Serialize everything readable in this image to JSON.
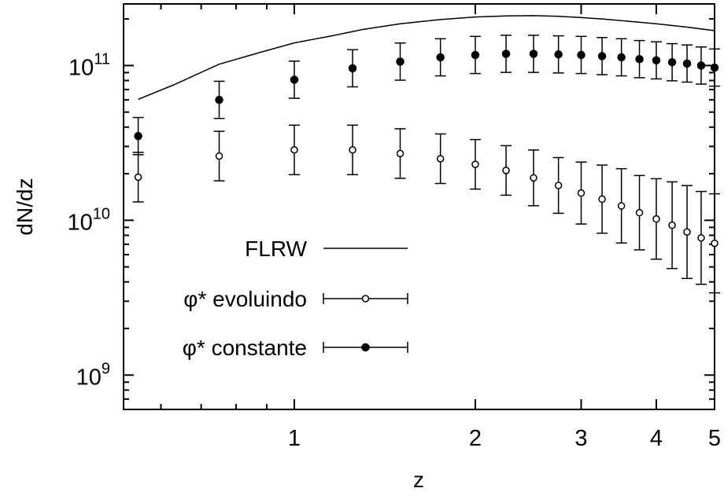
{
  "chart_data": {
    "type": "scatter",
    "xscale": "log",
    "yscale": "log",
    "xlim": [
      0.52,
      5.0
    ],
    "ylim": [
      600000000,
      250000000000
    ],
    "xlabel": "z",
    "ylabel": "dN/dz",
    "x_ticks": [
      {
        "value": 1,
        "label": "1"
      },
      {
        "value": 2,
        "label": "2"
      },
      {
        "value": 3,
        "label": "3"
      },
      {
        "value": 4,
        "label": "4"
      },
      {
        "value": 5,
        "label": "5"
      }
    ],
    "y_ticks": [
      {
        "value": 1000000000,
        "base": "10",
        "exp": "9"
      },
      {
        "value": 10000000000,
        "base": "10",
        "exp": "10"
      },
      {
        "value": 100000000000,
        "base": "10",
        "exp": "11"
      }
    ],
    "grid": false,
    "legend_position": "bottom-left",
    "series": [
      {
        "name": "FLRW",
        "style": "line",
        "color": "#000000",
        "x": [
          0.55,
          0.63,
          0.75,
          0.88,
          1.0,
          1.15,
          1.3,
          1.5,
          1.75,
          2.0,
          2.25,
          2.5,
          2.75,
          3.0,
          3.25,
          3.5,
          4.0,
          4.5,
          5.0
        ],
        "y": [
          60500000000,
          75000000000,
          102000000000,
          122000000000,
          140000000000,
          155000000000,
          171000000000,
          186000000000,
          198000000000,
          206000000000,
          209000000000,
          210000000000,
          208000000000,
          204000000000,
          200000000000,
          195000000000,
          186000000000,
          177000000000,
          168000000000
        ]
      },
      {
        "name_prefix": "φ*",
        "name_rest": " evoluindo",
        "style": "points-open",
        "color": "#000000",
        "x": [
          0.55,
          0.75,
          1.0,
          1.25,
          1.5,
          1.75,
          2.0,
          2.25,
          2.5,
          2.75,
          3.0,
          3.25,
          3.5,
          3.75,
          4.0,
          4.25,
          4.5,
          4.75,
          5.0
        ],
        "y": [
          19000000000,
          26000000000,
          28500000000,
          28500000000,
          27000000000,
          25000000000,
          23000000000,
          21000000000,
          18800000000,
          16800000000,
          15000000000,
          13700000000,
          12400000000,
          11200000000,
          10200000000,
          9300000000,
          8400000000,
          7700000000,
          7100000000
        ],
        "y_err": [
          0.16,
          0.16,
          0.16,
          0.16,
          0.16,
          0.16,
          0.16,
          0.16,
          0.18,
          0.18,
          0.2,
          0.22,
          0.24,
          0.24,
          0.26,
          0.28,
          0.3,
          0.3,
          0.32
        ]
      },
      {
        "name_prefix": "φ*",
        "name_rest": " constante",
        "style": "points-filled",
        "color": "#000000",
        "x": [
          0.55,
          0.75,
          1.0,
          1.25,
          1.5,
          1.75,
          2.0,
          2.25,
          2.5,
          2.75,
          3.0,
          3.25,
          3.5,
          3.75,
          4.0,
          4.25,
          4.5,
          4.75,
          5.0
        ],
        "y": [
          35000000000,
          60000000000,
          81000000000,
          96000000000,
          106000000000,
          113000000000,
          117000000000,
          119000000000,
          119000000000,
          118000000000,
          117000000000,
          115000000000,
          113000000000,
          110000000000,
          108000000000,
          105000000000,
          103000000000,
          100000000000,
          97000000000
        ],
        "y_err": [
          0.12,
          0.12,
          0.12,
          0.12,
          0.12,
          0.12,
          0.12,
          0.12,
          0.12,
          0.12,
          0.12,
          0.12,
          0.12,
          0.12,
          0.12,
          0.12,
          0.12,
          0.12,
          0.12
        ]
      }
    ]
  }
}
